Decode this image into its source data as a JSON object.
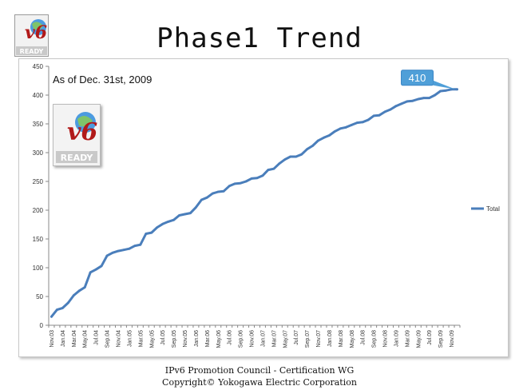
{
  "slide": {
    "title": "Phase1 Trend",
    "logo_text": "READY",
    "logo_mark": "v6",
    "footer_line1": "IPv6 Promotion Council  - Certification WG",
    "footer_line2": "Copyright©   Yokogawa Electric Corporation"
  },
  "chart_data": {
    "type": "line",
    "annotation": "As of Dec. 31st, 2009",
    "callout": "410",
    "ylim": [
      0,
      450
    ],
    "yticks": [
      0,
      50,
      100,
      150,
      200,
      250,
      300,
      350,
      400,
      450
    ],
    "legend": "right",
    "grid": false,
    "line_color": "#4a7ebb",
    "callout_color": "#4f9fd8",
    "categories": [
      "Nov.03",
      "Dec.03",
      "Jan.04",
      "Feb.04",
      "Mar.04",
      "Apr.04",
      "May.04",
      "Jun.04",
      "Jul.04",
      "Aug.04",
      "Sep.04",
      "Oct.04",
      "Nov.04",
      "Dec.04",
      "Jan.05",
      "Feb.05",
      "Mar.05",
      "Apr.05",
      "May.05",
      "Jun.05",
      "Jul.05",
      "Aug.05",
      "Sep.05",
      "Oct.05",
      "Nov.05",
      "Dec.05",
      "Jan.06",
      "Feb.06",
      "Mar.06",
      "Apr.06",
      "May.06",
      "Jun.06",
      "Jul.06",
      "Aug.06",
      "Sep.06",
      "Oct.06",
      "Nov.06",
      "Dec.06",
      "Jan.07",
      "Feb.07",
      "Mar.07",
      "Apr.07",
      "May.07",
      "Jun.07",
      "Jul.07",
      "Aug.07",
      "Sep.07",
      "Oct.07",
      "Nov.07",
      "Dec.07",
      "Jan.08",
      "Feb.08",
      "Mar.08",
      "Apr.08",
      "May.08",
      "Jun.08",
      "Jul.08",
      "Aug.08",
      "Sep.08",
      "Oct.08",
      "Nov.08",
      "Dec.08",
      "Jan.09",
      "Feb.09",
      "Mar.09",
      "Apr.09",
      "May.09",
      "Jun.09",
      "Jul.09",
      "Aug.09",
      "Sep.09",
      "Oct.09",
      "Nov.09",
      "Dec.09"
    ],
    "tick_labels": [
      "Nov.03",
      "",
      "Jan.04",
      "",
      "Mar.04",
      "",
      "May.04",
      "",
      "Jul.04",
      "",
      "Sep.04",
      "",
      "Nov.04",
      "",
      "Jan.05",
      "",
      "Mar.05",
      "",
      "May.05",
      "",
      "Jul.05",
      "",
      "Sep.05",
      "",
      "Nov.05",
      "",
      "Jan.06",
      "",
      "Mar.06",
      "",
      "May.06",
      "",
      "Jul.06",
      "",
      "Sep.06",
      "",
      "Nov.06",
      "",
      "Jan.07",
      "",
      "Mar.07",
      "",
      "May.07",
      "",
      "Jul.07",
      "",
      "Sep.07",
      "",
      "Nov.07",
      "",
      "Jan.08",
      "",
      "Mar.08",
      "",
      "May.08",
      "",
      "Jul.08",
      "",
      "Sep.08",
      "",
      "Nov.08",
      "",
      "Jan.09",
      "",
      "Mar.09",
      "",
      "May.09",
      "",
      "Jul.09",
      "",
      "Sep.09",
      "",
      "Nov.09",
      ""
    ],
    "series": [
      {
        "name": "Total",
        "values": [
          15,
          27,
          30,
          39,
          52,
          60,
          66,
          92,
          97,
          103,
          121,
          126,
          129,
          131,
          133,
          138,
          140,
          159,
          161,
          170,
          176,
          180,
          183,
          191,
          193,
          195,
          205,
          218,
          222,
          229,
          232,
          233,
          242,
          246,
          247,
          250,
          255,
          256,
          260,
          270,
          272,
          281,
          288,
          293,
          293,
          297,
          306,
          312,
          321,
          326,
          330,
          337,
          342,
          344,
          348,
          352,
          353,
          357,
          364,
          365,
          371,
          375,
          381,
          385,
          389,
          390,
          393,
          395,
          395,
          400,
          407,
          408,
          410,
          410
        ]
      }
    ]
  }
}
